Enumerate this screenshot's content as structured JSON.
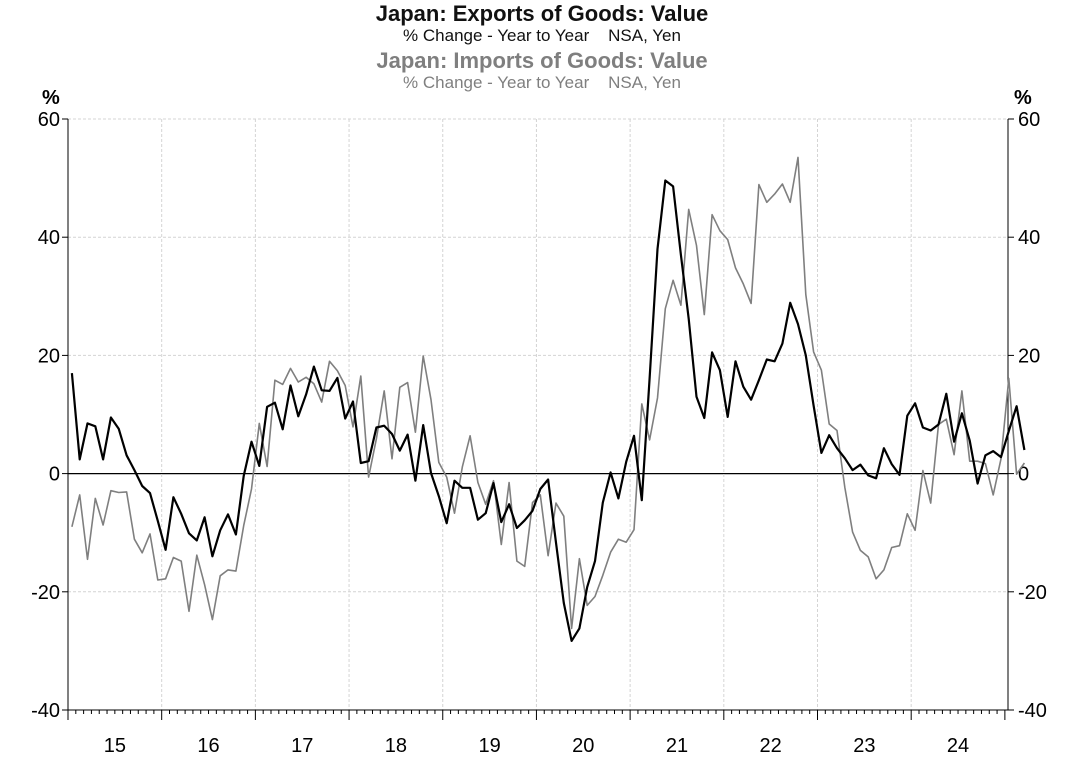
{
  "titles": {
    "exports_title": "Japan: Exports of Goods: Value",
    "exports_sub": "% Change - Year to Year    NSA, Yen",
    "imports_title": "Japan: Imports of Goods: Value",
    "imports_sub": "% Change - Year to Year    NSA, Yen"
  },
  "colors": {
    "exports": "#000000",
    "imports": "#7f7f7f",
    "grid": "#d4d4d4"
  },
  "chart_data": {
    "type": "line",
    "x_start": "2015-01",
    "frequency": "monthly",
    "x_tick_labels": [
      "15",
      "16",
      "17",
      "18",
      "19",
      "20",
      "21",
      "22",
      "23",
      "24"
    ],
    "ylabel_left": "%",
    "ylabel_right": "%",
    "ylim": [
      -40,
      60
    ],
    "yticks": [
      -40,
      -20,
      0,
      20,
      40,
      60
    ],
    "grid": true,
    "series": [
      {
        "name": "Japan: Exports of Goods: Value",
        "values": [
          17.0,
          2.4,
          8.5,
          8.0,
          2.4,
          9.5,
          7.6,
          3.1,
          0.6,
          -2.1,
          -3.3,
          -8.0,
          -12.9,
          -4.0,
          -6.8,
          -10.1,
          -11.3,
          -7.4,
          -14.0,
          -9.6,
          -6.9,
          -10.3,
          -0.4,
          5.4,
          1.3,
          11.3,
          12.0,
          7.5,
          14.9,
          9.7,
          13.4,
          18.1,
          14.1,
          14.0,
          16.2,
          9.3,
          12.2,
          1.8,
          2.1,
          7.8,
          8.1,
          6.7,
          3.9,
          6.6,
          -1.2,
          8.2,
          0.1,
          -3.8,
          -8.4,
          -1.2,
          -2.4,
          -2.4,
          -7.8,
          -6.7,
          -1.6,
          -8.2,
          -5.2,
          -9.2,
          -7.9,
          -6.3,
          -2.6,
          -1.0,
          -11.7,
          -21.9,
          -28.3,
          -26.2,
          -19.2,
          -14.8,
          -4.9,
          0.2,
          -4.2,
          2.0,
          6.4,
          -4.5,
          16.1,
          38.0,
          49.6,
          48.6,
          37.0,
          26.2,
          13.0,
          9.4,
          20.5,
          17.5,
          9.6,
          19.0,
          14.7,
          12.5,
          15.8,
          19.3,
          19.0,
          22.0,
          28.9,
          25.3,
          20.0,
          11.5,
          3.5,
          6.5,
          4.3,
          2.6,
          0.6,
          1.5,
          -0.3,
          -0.8,
          4.3,
          1.6,
          -0.2,
          9.8,
          11.9,
          7.8,
          7.3,
          8.3,
          13.5,
          5.4,
          10.2,
          5.6,
          -1.7,
          3.1,
          3.8,
          2.8,
          7.2,
          11.4,
          4.0
        ]
      },
      {
        "name": "Japan: Imports of Goods: Value",
        "values": [
          -9.0,
          -3.6,
          -14.5,
          -4.2,
          -8.7,
          -2.9,
          -3.2,
          -3.1,
          -11.1,
          -13.4,
          -10.2,
          -18.0,
          -17.8,
          -14.2,
          -14.8,
          -23.3,
          -13.8,
          -18.8,
          -24.7,
          -17.3,
          -16.3,
          -16.5,
          -8.8,
          -2.6,
          8.5,
          1.2,
          15.8,
          15.1,
          17.8,
          15.5,
          16.3,
          15.2,
          12.1,
          19.0,
          17.4,
          14.9,
          7.9,
          16.5,
          -0.6,
          5.9,
          14.0,
          2.5,
          14.6,
          15.4,
          7.0,
          19.9,
          12.5,
          1.9,
          -0.6,
          -6.7,
          1.1,
          6.4,
          -1.5,
          -5.2,
          -1.2,
          -12.0,
          -1.5,
          -14.8,
          -15.7,
          -4.9,
          -3.6,
          -13.9,
          -5.0,
          -7.2,
          -26.2,
          -14.4,
          -22.3,
          -20.8,
          -17.2,
          -13.3,
          -11.1,
          -11.6,
          -9.5,
          11.8,
          5.7,
          12.8,
          27.9,
          32.7,
          28.5,
          44.7,
          38.6,
          26.9,
          43.8,
          41.1,
          39.6,
          34.8,
          32.1,
          28.8,
          48.9,
          45.9,
          47.3,
          49.0,
          45.9,
          53.5,
          30.3,
          20.6,
          17.5,
          8.4,
          7.3,
          -2.3,
          -9.9,
          -13.0,
          -14.1,
          -17.8,
          -16.3,
          -12.5,
          -12.2,
          -6.8,
          -9.6,
          0.5,
          -5.0,
          8.3,
          9.2,
          3.2,
          14.0,
          2.1,
          2.1,
          1.7,
          -3.6,
          2.5,
          16.1,
          -0.1,
          1.8
        ]
      }
    ]
  }
}
